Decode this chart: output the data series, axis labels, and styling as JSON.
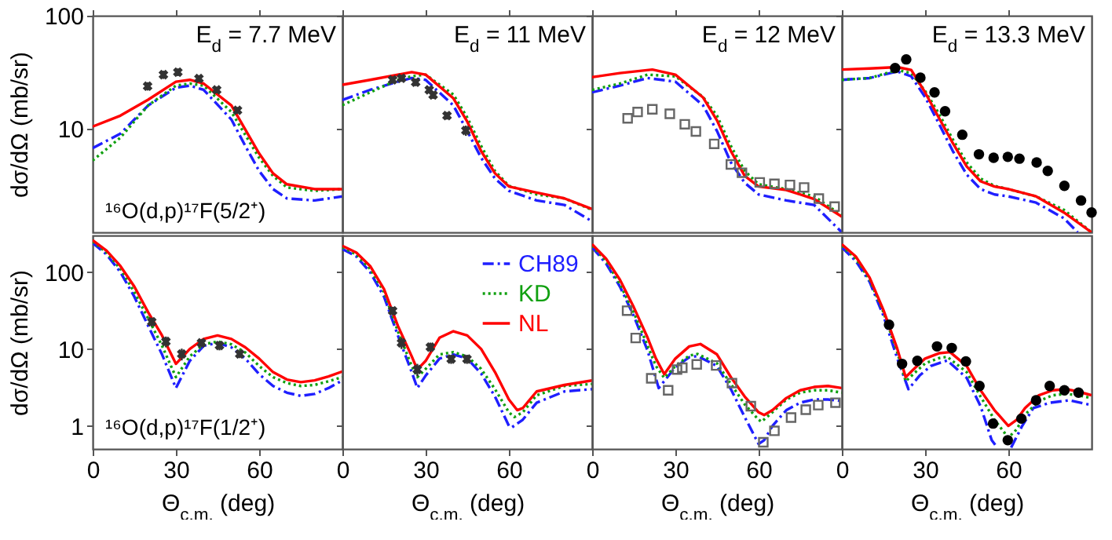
{
  "chart_data": [
    {
      "type": "line",
      "title": "E$_{d}$ = 7.7 MeV",
      "ylabel": "dσ/dΩ  (mb/sr)",
      "annotations": [
        "¹⁶O(d,p)¹⁷F(5/2⁺)"
      ],
      "xlim": [
        0,
        90
      ],
      "xticks": [
        0,
        30,
        60
      ],
      "ylim": [
        1.2,
        100
      ],
      "yticks": [
        10,
        100
      ],
      "log": true,
      "tick_labels": "y",
      "series": [
        {
          "type": "line",
          "color": "#1f1fff",
          "line_style": "dashdot",
          "x": [
            0,
            10,
            20,
            30,
            35,
            40,
            50,
            55,
            60,
            65,
            70,
            80,
            90
          ],
          "values": [
            6.7,
            9,
            16,
            23,
            24,
            22,
            12,
            7,
            4.2,
            2.9,
            2.4,
            2.3,
            2.5
          ]
        },
        {
          "type": "line",
          "color": "#10a010",
          "line_style": "dotted",
          "x": [
            0,
            10,
            20,
            30,
            35,
            40,
            50,
            60,
            65,
            70,
            80,
            90
          ],
          "values": [
            5.2,
            8.3,
            16,
            24,
            25,
            24,
            14,
            5.5,
            3.8,
            3,
            2.8,
            2.9
          ]
        },
        {
          "type": "line",
          "color": "#ff0000",
          "line_style": "solid",
          "x": [
            0,
            10,
            20,
            30,
            35,
            40,
            50,
            60,
            65,
            70,
            80,
            90
          ],
          "values": [
            10.4,
            13,
            18,
            26,
            27,
            25,
            16,
            6,
            4,
            3.2,
            2.9,
            2.9
          ]
        },
        {
          "type": "scatter",
          "color": "#333333",
          "marker": "cross",
          "x": [
            19.8,
            25.5,
            30.7,
            38.3,
            44.7,
            52.2
          ],
          "values": [
            23.7,
            30,
            31.6,
            27.7,
            22,
            14.5
          ],
          "errors": [
            2,
            2.5,
            2.5,
            2,
            1.5,
            1
          ]
        }
      ]
    },
    {
      "type": "line",
      "title": "E$_{d}$ = 11 MeV",
      "xlim": [
        0,
        90
      ],
      "xticks": [
        0,
        30,
        60
      ],
      "ylim": [
        1.2,
        100
      ],
      "yticks": [
        10,
        100
      ],
      "log": true,
      "tick_labels": false,
      "series": [
        {
          "type": "line",
          "color": "#1f1fff",
          "line_style": "dashdot",
          "x": [
            0,
            10,
            20,
            25,
            30,
            40,
            45,
            50,
            55,
            60,
            70,
            80,
            90
          ],
          "values": [
            17.9,
            22,
            26,
            28,
            27,
            16,
            9.5,
            5.5,
            3.6,
            2.8,
            2.3,
            2.1,
            1.5
          ]
        },
        {
          "type": "line",
          "color": "#10a010",
          "line_style": "dotted",
          "x": [
            0,
            10,
            20,
            25,
            30,
            40,
            45,
            50,
            55,
            60,
            70,
            80,
            90
          ],
          "values": [
            16.1,
            20.9,
            27,
            29,
            30,
            20,
            12.5,
            7,
            4.2,
            3.1,
            2.6,
            2.4,
            1.9
          ]
        },
        {
          "type": "line",
          "color": "#ff0000",
          "line_style": "solid",
          "x": [
            0,
            10,
            20,
            25,
            30,
            40,
            45,
            50,
            55,
            60,
            70,
            80,
            90
          ],
          "values": [
            24.4,
            27,
            30,
            31.6,
            30,
            18.5,
            11.5,
            6.3,
            4,
            3.06,
            2.7,
            2.4,
            1.93
          ]
        },
        {
          "type": "scatter",
          "color": "#333333",
          "marker": "cross",
          "x": [
            18.1,
            21.3,
            26.4,
            31.3,
            32.7,
            37.7,
            44.5
          ],
          "values": [
            27,
            27.9,
            25.7,
            22,
            19.8,
            13,
            9.6
          ],
          "errors": [
            2,
            2,
            2,
            1.5,
            1.5,
            1,
            1
          ]
        }
      ]
    },
    {
      "type": "line",
      "title": "E$_{d}$ = 12 MeV",
      "xlim": [
        0,
        90
      ],
      "xticks": [
        0,
        30,
        60
      ],
      "ylim": [
        1.2,
        100
      ],
      "yticks": [
        10,
        100
      ],
      "log": true,
      "tick_labels": false,
      "series": [
        {
          "type": "line",
          "color": "#1f1fff",
          "line_style": "dashdot",
          "x": [
            0,
            10,
            20,
            30,
            40,
            45,
            50,
            55,
            60,
            70,
            80,
            90
          ],
          "values": [
            20.9,
            24,
            28,
            26,
            16,
            9.5,
            5,
            3.3,
            2.6,
            2.3,
            2.1,
            1.2
          ]
        },
        {
          "type": "line",
          "color": "#10a010",
          "line_style": "dotted",
          "x": [
            0,
            10,
            20,
            30,
            40,
            45,
            50,
            55,
            60,
            70,
            80,
            90
          ],
          "values": [
            22,
            25,
            30,
            29,
            19,
            13,
            7,
            4.2,
            3.2,
            2.9,
            2.5,
            1.7
          ]
        },
        {
          "type": "line",
          "color": "#ff0000",
          "line_style": "solid",
          "x": [
            0,
            10,
            21.7,
            30,
            40,
            45,
            50,
            55,
            60,
            70,
            80,
            90
          ],
          "values": [
            28.5,
            31,
            33.3,
            30,
            18.8,
            11.8,
            6.3,
            3.8,
            3.06,
            2.85,
            2.37,
            1.65
          ]
        },
        {
          "type": "scatter",
          "color": "#666666",
          "marker": "square",
          "x": [
            12.8,
            16.4,
            21.7,
            28,
            33.4,
            37.4,
            44,
            50,
            54,
            60.4,
            65.7,
            71.3,
            76.4,
            81.7,
            87.4
          ],
          "values": [
            12.3,
            14,
            14.8,
            13.5,
            10.9,
            9.4,
            7.3,
            4.8,
            4.05,
            3.33,
            3.23,
            3.16,
            3.0,
            2.39,
            2.03
          ]
        }
      ]
    },
    {
      "type": "line",
      "title": "E$_{d}$ = 13.3 MeV",
      "xlim": [
        0,
        90
      ],
      "xticks": [
        0,
        30,
        60
      ],
      "ylim": [
        1.2,
        100
      ],
      "yticks": [
        10,
        100
      ],
      "log": true,
      "tick_labels": false,
      "series": [
        {
          "type": "line",
          "color": "#1f1fff",
          "line_style": "dashdot",
          "x": [
            0,
            10,
            20,
            25,
            30,
            35,
            40,
            45,
            50,
            55,
            60,
            70,
            80,
            85
          ],
          "values": [
            27,
            28,
            32,
            29,
            19,
            11,
            6.3,
            3.9,
            2.9,
            2.6,
            2.5,
            2.2,
            1.6,
            1.2
          ]
        },
        {
          "type": "line",
          "color": "#10a010",
          "line_style": "dotted",
          "x": [
            0,
            10,
            20,
            25,
            30,
            35,
            40,
            45,
            50,
            55,
            60,
            70,
            80,
            90
          ],
          "values": [
            27,
            28,
            33,
            31,
            21.5,
            13.5,
            8,
            5,
            3.6,
            3.1,
            2.9,
            2.5,
            1.9,
            1.2
          ]
        },
        {
          "type": "line",
          "color": "#ff0000",
          "line_style": "solid",
          "x": [
            0,
            10,
            20,
            25,
            30,
            35,
            40,
            45,
            50,
            55,
            60,
            70,
            80,
            90
          ],
          "values": [
            33.3,
            34,
            35,
            33,
            20.9,
            12.4,
            7.4,
            4.6,
            3.4,
            3.06,
            2.9,
            2.5,
            1.8,
            1.2
          ]
        },
        {
          "type": "scatter",
          "color": "#000000",
          "marker": "circle",
          "x": [
            19.2,
            23.2,
            28.3,
            33.4,
            37.2,
            43.4,
            49.4,
            54.7,
            59.8,
            64,
            70.2,
            74.2,
            80.2,
            86.2,
            90
          ],
          "values": [
            34.3,
            41,
            28.2,
            20.9,
            14.2,
            8.8,
            5.9,
            5.5,
            5.6,
            5.4,
            5.0,
            4.2,
            3.1,
            2.3,
            1.8
          ]
        }
      ]
    },
    {
      "type": "line",
      "xlabel": "Θ$_{c.m.}$ (deg)",
      "ylabel": "dσ/dΩ  (mb/sr)",
      "annotations": [
        "¹⁶O(d,p)¹⁷F(1/2⁺)"
      ],
      "xlim": [
        0,
        90
      ],
      "xticks": [
        0,
        30,
        60
      ],
      "ylim": [
        0.5,
        300
      ],
      "yticks": [
        1,
        10,
        100
      ],
      "log": true,
      "series": [
        {
          "type": "line",
          "color": "#1f1fff",
          "line_style": "dashdot",
          "x": [
            0,
            5,
            10,
            15,
            20,
            25,
            30,
            35,
            40,
            45,
            50,
            55,
            60,
            65,
            70,
            75,
            80,
            85,
            90
          ],
          "values": [
            240,
            170,
            100,
            48,
            20,
            8.5,
            3.1,
            7,
            11,
            12,
            10.5,
            7.5,
            4.7,
            3.3,
            2.7,
            2.45,
            2.6,
            3.1,
            3.9
          ]
        },
        {
          "type": "line",
          "color": "#10a010",
          "line_style": "dotted",
          "x": [
            0,
            5,
            10,
            15,
            20,
            25,
            30,
            35,
            40,
            45,
            50,
            55,
            60,
            65,
            70,
            75,
            80,
            85,
            90
          ],
          "values": [
            250,
            180,
            110,
            55,
            25,
            11,
            4.3,
            8,
            11.5,
            12.5,
            11.5,
            9,
            6,
            4.3,
            3.6,
            3.3,
            3.4,
            3.8,
            4.3
          ]
        },
        {
          "type": "line",
          "color": "#ff0000",
          "line_style": "solid",
          "x": [
            0,
            5,
            10,
            15,
            20,
            25,
            30,
            35,
            40,
            45,
            50,
            55,
            60,
            65,
            70,
            75,
            80,
            85,
            90
          ],
          "values": [
            260,
            190,
            120,
            65,
            30,
            15,
            6.4,
            10,
            13.5,
            15,
            13.5,
            10.5,
            7.5,
            5,
            4,
            3.7,
            3.9,
            4.4,
            5.1
          ]
        },
        {
          "type": "scatter",
          "color": "#333333",
          "marker": "cross",
          "x": [
            21.3,
            26.4,
            32.1,
            39.2,
            45.7,
            53
          ],
          "values": [
            22.6,
            12.5,
            8.6,
            12,
            11.1,
            8.6
          ],
          "errors": [
            3,
            2,
            1.5,
            1.5,
            1.5,
            1
          ]
        }
      ]
    },
    {
      "type": "line",
      "xlabel": "Θ$_{c.m.}$ (deg)",
      "xlim": [
        0,
        90
      ],
      "xticks": [
        0,
        30,
        60
      ],
      "ylim": [
        0.5,
        300
      ],
      "yticks": [
        1,
        10,
        100
      ],
      "log": true,
      "tick_labels": "x",
      "legend": "top right",
      "series": [
        {
          "type": "line",
          "name": "CH89",
          "color": "#1f1fff",
          "line_style": "dashdot",
          "x": [
            0,
            5,
            10,
            15,
            20,
            25,
            27,
            30,
            35,
            40,
            45,
            50,
            55,
            60,
            61,
            65,
            70,
            80,
            90
          ],
          "values": [
            200,
            160,
            100,
            48,
            15,
            5,
            3.1,
            4.5,
            7.5,
            8.5,
            7.5,
            4.8,
            2.4,
            1.0,
            0.95,
            1.2,
            2.0,
            2.8,
            3.0
          ]
        },
        {
          "type": "line",
          "name": "KD",
          "color": "#10a010",
          "line_style": "dotted",
          "x": [
            0,
            5,
            10,
            15,
            20,
            25,
            27,
            30,
            35,
            40,
            45,
            50,
            55,
            60,
            62,
            65,
            70,
            80,
            90
          ],
          "values": [
            210,
            170,
            110,
            55,
            17,
            6,
            4.3,
            5.5,
            8.5,
            9.1,
            8,
            5.5,
            3,
            1.5,
            1.3,
            1.5,
            2.5,
            3.3,
            3.5
          ]
        },
        {
          "type": "line",
          "name": "NL",
          "color": "#ff0000",
          "line_style": "solid",
          "x": [
            0,
            5,
            10,
            15,
            20,
            25,
            27,
            30,
            35,
            40,
            45,
            50,
            55,
            60,
            63,
            65,
            70,
            80,
            90
          ],
          "values": [
            220,
            180,
            120,
            60,
            20,
            8,
            5.4,
            7,
            14,
            17,
            15,
            10,
            5,
            2.2,
            1.6,
            1.7,
            2.8,
            3.4,
            3.9
          ]
        },
        {
          "type": "scatter",
          "color": "#333333",
          "marker": "cross",
          "x": [
            18.1,
            21.3,
            27,
            31.7,
            39.2,
            44.9
          ],
          "values": [
            31.4,
            12,
            5.4,
            10.6,
            7.4,
            7.4
          ],
          "errors": [
            4,
            2,
            1,
            1.5,
            1,
            1
          ]
        }
      ]
    },
    {
      "type": "line",
      "xlabel": "Θ$_{c.m.}$ (deg)",
      "xlim": [
        0,
        90
      ],
      "xticks": [
        0,
        30,
        60
      ],
      "ylim": [
        0.5,
        300
      ],
      "yticks": [
        1,
        10,
        100
      ],
      "log": true,
      "tick_labels": "x",
      "series": [
        {
          "type": "line",
          "color": "#1f1fff",
          "line_style": "dashdot",
          "x": [
            0,
            5,
            10,
            15,
            20,
            24,
            30,
            35,
            38,
            45,
            50,
            55,
            60,
            62,
            65,
            70,
            75,
            80,
            85,
            90
          ],
          "values": [
            210,
            130,
            65,
            27,
            9.5,
            3.1,
            5.8,
            7.8,
            8.1,
            6,
            3,
            1.3,
            0.58,
            0.65,
            1.0,
            1.6,
            2.0,
            2.2,
            2.2,
            2.1
          ]
        },
        {
          "type": "line",
          "color": "#10a010",
          "line_style": "dotted",
          "x": [
            0,
            5,
            10,
            15,
            20,
            23,
            26,
            30,
            35,
            38,
            45,
            50,
            55,
            60,
            61,
            65,
            70,
            75,
            80,
            85,
            90
          ],
          "values": [
            220,
            140,
            70,
            30,
            11,
            6,
            4.2,
            6,
            8.2,
            8.6,
            6.5,
            3.5,
            1.9,
            1.2,
            1.13,
            1.5,
            2.2,
            2.7,
            2.9,
            2.9,
            2.7
          ]
        },
        {
          "type": "line",
          "color": "#ff0000",
          "line_style": "solid",
          "x": [
            0,
            5,
            10,
            15,
            20,
            23,
            26,
            30,
            35,
            39,
            45,
            50,
            55,
            60,
            62,
            65,
            70,
            75,
            80,
            85,
            90
          ],
          "values": [
            230,
            150,
            80,
            35,
            14,
            7.5,
            4.7,
            7.5,
            10.8,
            11.6,
            8.5,
            4.3,
            2.4,
            1.5,
            1.38,
            1.6,
            2.3,
            2.9,
            3.2,
            3.3,
            3.1
          ]
        },
        {
          "type": "scatter",
          "color": "#666666",
          "marker": "square",
          "x": [
            12.6,
            15.7,
            21.3,
            27.4,
            30.6,
            32.5,
            37.7,
            44.7,
            50.4,
            57.2,
            61.7,
            65.7,
            71.7,
            77,
            81.5,
            87.7
          ],
          "values": [
            31.5,
            13.9,
            4.15,
            2.9,
            5.4,
            5.7,
            6.3,
            6.1,
            3.6,
            1.8,
            0.61,
            0.86,
            1.28,
            1.62,
            1.86,
            2.0
          ]
        }
      ]
    },
    {
      "type": "line",
      "xlabel": "Θ$_{c.m.}$ (deg)",
      "xlim": [
        0,
        90
      ],
      "xticks": [
        0,
        30,
        60
      ],
      "ylim": [
        0.5,
        300
      ],
      "yticks": [
        1,
        10,
        100
      ],
      "log": true,
      "tick_labels": "x",
      "series": [
        {
          "type": "line",
          "color": "#1f1fff",
          "line_style": "dashdot",
          "x": [
            0,
            5,
            10,
            15,
            20,
            24,
            28,
            32,
            38,
            45,
            50,
            54,
            56,
            58,
            61,
            65,
            69,
            75,
            82,
            90
          ],
          "values": [
            210,
            140,
            75,
            27,
            7.5,
            3.0,
            4.5,
            6,
            7.1,
            4.2,
            1.8,
            0.65,
            0.52,
            null,
            0.52,
            1.0,
            1.7,
            2.0,
            2.15,
            1.86
          ]
        },
        {
          "type": "line",
          "color": "#10a010",
          "line_style": "dotted",
          "x": [
            0,
            5,
            10,
            15,
            20,
            23,
            26,
            30,
            35,
            38,
            45,
            50,
            55,
            60,
            63,
            66,
            71,
            76,
            81,
            85,
            90
          ],
          "values": [
            220,
            150,
            80,
            30,
            9,
            3.8,
            4.8,
            6.5,
            7.6,
            7.9,
            5,
            2.4,
            1.2,
            0.7,
            0.9,
            1.4,
            2.1,
            2.5,
            2.6,
            2.5,
            2.3
          ]
        },
        {
          "type": "line",
          "color": "#ff0000",
          "line_style": "solid",
          "x": [
            0,
            5,
            10,
            15,
            20,
            23,
            26,
            30,
            35,
            39,
            45,
            50,
            55,
            60,
            63,
            66,
            71,
            76,
            81,
            85,
            90
          ],
          "values": [
            230,
            160,
            85,
            32,
            10,
            4.3,
            5.5,
            7.5,
            8.8,
            9.1,
            6,
            2.9,
            1.6,
            1.0,
            1.2,
            1.7,
            2.5,
            2.9,
            3.0,
            2.8,
            2.5
          ]
        },
        {
          "type": "scatter",
          "color": "#000000",
          "marker": "circle",
          "x": [
            17,
            21.7,
            27.2,
            34.3,
            39.6,
            44.7,
            49.6,
            54.5,
            59.8,
            64.7,
            70,
            74.9,
            80.2,
            85.3
          ],
          "values": [
            20.7,
            6.4,
            7.0,
            10.8,
            10.3,
            6.9,
            3.3,
            1.07,
            0.65,
            1.24,
            2.15,
            3.3,
            2.9,
            2.7
          ]
        }
      ]
    }
  ]
}
